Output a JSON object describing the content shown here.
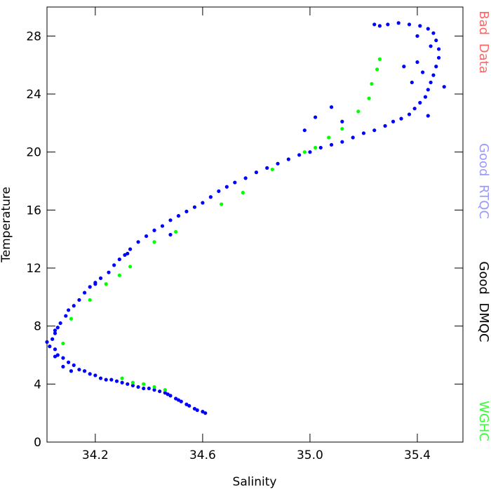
{
  "chart_data": {
    "type": "scatter",
    "x_label": "Salinity",
    "y_label": "Temperature",
    "xlim": [
      34.02,
      35.57
    ],
    "ylim": [
      0,
      30
    ],
    "xticks": [
      34.2,
      34.6,
      {
        "value": 35,
        "label": "35.0"
      },
      35.4
    ],
    "yticks": [
      0,
      4,
      8,
      12,
      16,
      20,
      24,
      28
    ],
    "series": [
      {
        "name": "Bad Data",
        "color": "#ff0000",
        "label_color": "#ff6666",
        "x": [],
        "values": []
      },
      {
        "name": "Good RTQC",
        "color": "#0000ff",
        "label_color": "#9999ff",
        "x": [
          34.61,
          34.6,
          34.58,
          34.57,
          34.55,
          34.54,
          34.52,
          34.51,
          34.5,
          34.48,
          34.47,
          34.46,
          34.44,
          34.42,
          34.4,
          34.38,
          34.36,
          34.34,
          34.32,
          34.3,
          34.28,
          34.26,
          34.24,
          34.22,
          34.2,
          34.18,
          34.16,
          34.14,
          34.12,
          34.1,
          34.08,
          34.06,
          34.05,
          34.03,
          34.02,
          34.04,
          34.05,
          34.06,
          34.07,
          34.09,
          34.1,
          34.12,
          34.14,
          34.16,
          34.18,
          34.2,
          34.22,
          34.25,
          34.27,
          34.29,
          34.31,
          34.33,
          34.36,
          34.39,
          34.42,
          34.45,
          34.48,
          34.51,
          34.54,
          34.57,
          34.6,
          34.63,
          34.66,
          34.69,
          34.72,
          34.76,
          34.8,
          34.84,
          34.88,
          34.92,
          34.96,
          35.0,
          35.04,
          35.08,
          35.12,
          35.16,
          35.2,
          35.24,
          35.28,
          35.31,
          35.34,
          35.37,
          35.39,
          35.41,
          35.43,
          35.44,
          35.45,
          35.46,
          35.47,
          35.48,
          35.48,
          35.47,
          35.46,
          35.44,
          35.41,
          35.37,
          35.33,
          35.29,
          35.26,
          35.24,
          35.5,
          35.42,
          35.4,
          35.38,
          35.44,
          35.35,
          35.4,
          35.45,
          35.12,
          35.08,
          35.02,
          34.98,
          34.48,
          34.32,
          34.2,
          34.05,
          34.08,
          34.05,
          34.11
        ],
        "values": [
          2.0,
          2.1,
          2.2,
          2.3,
          2.5,
          2.6,
          2.8,
          2.9,
          3.0,
          3.2,
          3.3,
          3.4,
          3.5,
          3.6,
          3.7,
          3.7,
          3.8,
          3.9,
          4.0,
          4.1,
          4.2,
          4.3,
          4.3,
          4.4,
          4.6,
          4.7,
          4.9,
          5.0,
          5.3,
          5.5,
          5.8,
          6.0,
          6.4,
          6.6,
          6.9,
          7.1,
          7.5,
          7.9,
          8.2,
          8.7,
          9.1,
          9.4,
          9.8,
          10.3,
          10.7,
          11.0,
          11.3,
          11.7,
          12.2,
          12.6,
          12.9,
          13.3,
          13.8,
          14.2,
          14.6,
          14.9,
          15.3,
          15.6,
          15.9,
          16.2,
          16.5,
          16.9,
          17.3,
          17.6,
          17.9,
          18.2,
          18.6,
          18.9,
          19.2,
          19.5,
          19.8,
          20.0,
          20.3,
          20.5,
          20.7,
          21.0,
          21.3,
          21.5,
          21.8,
          22.1,
          22.3,
          22.6,
          23.0,
          23.4,
          23.8,
          24.3,
          24.8,
          25.3,
          25.9,
          26.5,
          27.1,
          27.7,
          28.2,
          28.5,
          28.7,
          28.8,
          28.9,
          28.8,
          28.7,
          28.8,
          24.5,
          25.5,
          26.2,
          24.8,
          22.5,
          25.9,
          28.0,
          27.3,
          22.1,
          23.1,
          22.4,
          21.5,
          14.3,
          13.0,
          10.9,
          7.7,
          5.2,
          5.9,
          4.9
        ]
      },
      {
        "name": "Good DMQC",
        "color": "#000000",
        "label_color": "#000000",
        "x": [],
        "values": []
      },
      {
        "name": "WGHC",
        "color": "#00ff00",
        "label_color": "#33ff33",
        "x": [
          34.08,
          34.11,
          34.18,
          34.24,
          34.29,
          34.33,
          34.42,
          34.5,
          34.67,
          34.75,
          34.86,
          34.98,
          35.02,
          35.07,
          35.12,
          35.18,
          35.22,
          35.23,
          35.25,
          35.26,
          34.3,
          34.34,
          34.38,
          34.42,
          34.46
        ],
        "values": [
          6.8,
          8.5,
          9.8,
          10.9,
          11.5,
          12.1,
          13.8,
          14.5,
          16.4,
          17.2,
          18.8,
          20.0,
          20.3,
          21.0,
          21.6,
          22.8,
          23.7,
          24.7,
          25.7,
          26.4,
          4.4,
          4.1,
          4.0,
          3.8,
          3.6
        ]
      }
    ]
  }
}
